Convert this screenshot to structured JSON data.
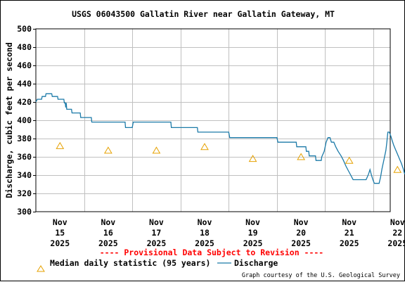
{
  "colors": {
    "discharge_line": "#1b7aa8",
    "median_marker": "#e6a100",
    "provisional_text": "#ff0000",
    "grid": "#c0c0c0"
  },
  "chart_data": {
    "type": "line",
    "title": "USGS 06043500 Gallatin River near Gallatin Gateway, MT",
    "ylabel": "Discharge, cubic feet per second",
    "xlabel": "",
    "ylim": [
      300,
      500
    ],
    "xlim": [
      0,
      7.35
    ],
    "yticks": [
      300,
      320,
      340,
      360,
      380,
      400,
      420,
      440,
      460,
      480,
      500
    ],
    "grid": true,
    "x_unit": "days since Nov 15 2025 00:00",
    "xticks": [
      {
        "x": 0.5,
        "lines": [
          "Nov",
          "15",
          "2025"
        ]
      },
      {
        "x": 1.5,
        "lines": [
          "Nov",
          "16",
          "2025"
        ]
      },
      {
        "x": 2.5,
        "lines": [
          "Nov",
          "17",
          "2025"
        ]
      },
      {
        "x": 3.5,
        "lines": [
          "Nov",
          "18",
          "2025"
        ]
      },
      {
        "x": 4.5,
        "lines": [
          "Nov",
          "19",
          "2025"
        ]
      },
      {
        "x": 5.5,
        "lines": [
          "Nov",
          "20",
          "2025"
        ]
      },
      {
        "x": 6.5,
        "lines": [
          "Nov",
          "21",
          "2025"
        ]
      },
      {
        "x": 7.5,
        "lines": [
          "Nov",
          "22",
          "2025"
        ]
      }
    ],
    "provisional_note": "---- Provisional Data Subject to Revision ----",
    "credit": "Graph courtesy of the U.S. Geological Survey",
    "series": [
      {
        "name": "Median daily statistic (95 years)",
        "kind": "marker",
        "points": [
          {
            "x": 0.5,
            "y": 372
          },
          {
            "x": 1.5,
            "y": 367
          },
          {
            "x": 2.5,
            "y": 367
          },
          {
            "x": 3.5,
            "y": 371
          },
          {
            "x": 4.5,
            "y": 358
          },
          {
            "x": 5.5,
            "y": 360
          },
          {
            "x": 6.5,
            "y": 356
          },
          {
            "x": 7.5,
            "y": 346
          }
        ]
      },
      {
        "name": "Discharge",
        "kind": "step-line",
        "points": [
          {
            "x": 0.0,
            "y": 420
          },
          {
            "x": 0.03,
            "y": 423
          },
          {
            "x": 0.12,
            "y": 423
          },
          {
            "x": 0.13,
            "y": 426
          },
          {
            "x": 0.2,
            "y": 426
          },
          {
            "x": 0.21,
            "y": 429
          },
          {
            "x": 0.33,
            "y": 429
          },
          {
            "x": 0.34,
            "y": 426
          },
          {
            "x": 0.45,
            "y": 426
          },
          {
            "x": 0.46,
            "y": 423
          },
          {
            "x": 0.58,
            "y": 423
          },
          {
            "x": 0.59,
            "y": 419
          },
          {
            "x": 0.61,
            "y": 419
          },
          {
            "x": 0.62,
            "y": 414
          },
          {
            "x": 0.63,
            "y": 419
          },
          {
            "x": 0.64,
            "y": 412
          },
          {
            "x": 0.74,
            "y": 412
          },
          {
            "x": 0.75,
            "y": 408
          },
          {
            "x": 0.92,
            "y": 408
          },
          {
            "x": 0.93,
            "y": 403
          },
          {
            "x": 1.15,
            "y": 403
          },
          {
            "x": 1.16,
            "y": 398
          },
          {
            "x": 1.85,
            "y": 398
          },
          {
            "x": 1.86,
            "y": 392
          },
          {
            "x": 2.0,
            "y": 392
          },
          {
            "x": 2.02,
            "y": 398
          },
          {
            "x": 2.8,
            "y": 398
          },
          {
            "x": 2.81,
            "y": 392
          },
          {
            "x": 3.35,
            "y": 392
          },
          {
            "x": 3.36,
            "y": 387
          },
          {
            "x": 4.0,
            "y": 387
          },
          {
            "x": 4.02,
            "y": 381
          },
          {
            "x": 5.0,
            "y": 381
          },
          {
            "x": 5.02,
            "y": 376
          },
          {
            "x": 5.4,
            "y": 376
          },
          {
            "x": 5.41,
            "y": 371
          },
          {
            "x": 5.6,
            "y": 371
          },
          {
            "x": 5.61,
            "y": 366
          },
          {
            "x": 5.66,
            "y": 366
          },
          {
            "x": 5.67,
            "y": 361
          },
          {
            "x": 5.8,
            "y": 361
          },
          {
            "x": 5.81,
            "y": 356
          },
          {
            "x": 5.92,
            "y": 356
          },
          {
            "x": 5.93,
            "y": 360
          },
          {
            "x": 5.98,
            "y": 366
          },
          {
            "x": 6.02,
            "y": 376
          },
          {
            "x": 6.06,
            "y": 381
          },
          {
            "x": 6.1,
            "y": 381
          },
          {
            "x": 6.13,
            "y": 376
          },
          {
            "x": 6.18,
            "y": 376
          },
          {
            "x": 6.22,
            "y": 371
          },
          {
            "x": 6.27,
            "y": 366
          },
          {
            "x": 6.33,
            "y": 361
          },
          {
            "x": 6.38,
            "y": 356
          },
          {
            "x": 6.43,
            "y": 350
          },
          {
            "x": 6.48,
            "y": 345
          },
          {
            "x": 6.53,
            "y": 340
          },
          {
            "x": 6.58,
            "y": 335
          },
          {
            "x": 6.85,
            "y": 335
          },
          {
            "x": 6.9,
            "y": 341
          },
          {
            "x": 6.93,
            "y": 346
          },
          {
            "x": 6.96,
            "y": 340
          },
          {
            "x": 6.99,
            "y": 335
          },
          {
            "x": 7.02,
            "y": 331
          },
          {
            "x": 7.12,
            "y": 331
          },
          {
            "x": 7.15,
            "y": 338
          },
          {
            "x": 7.18,
            "y": 347
          },
          {
            "x": 7.22,
            "y": 357
          },
          {
            "x": 7.26,
            "y": 367
          },
          {
            "x": 7.28,
            "y": 376
          },
          {
            "x": 7.3,
            "y": 387
          },
          {
            "x": 7.33,
            "y": 387
          },
          {
            "x": 7.36,
            "y": 383
          },
          {
            "x": 7.39,
            "y": 378
          },
          {
            "x": 7.42,
            "y": 373
          },
          {
            "x": 7.46,
            "y": 368
          },
          {
            "x": 7.5,
            "y": 363
          },
          {
            "x": 7.54,
            "y": 358
          },
          {
            "x": 7.58,
            "y": 353
          },
          {
            "x": 7.62,
            "y": 347
          },
          {
            "x": 7.65,
            "y": 341
          }
        ]
      }
    ]
  }
}
